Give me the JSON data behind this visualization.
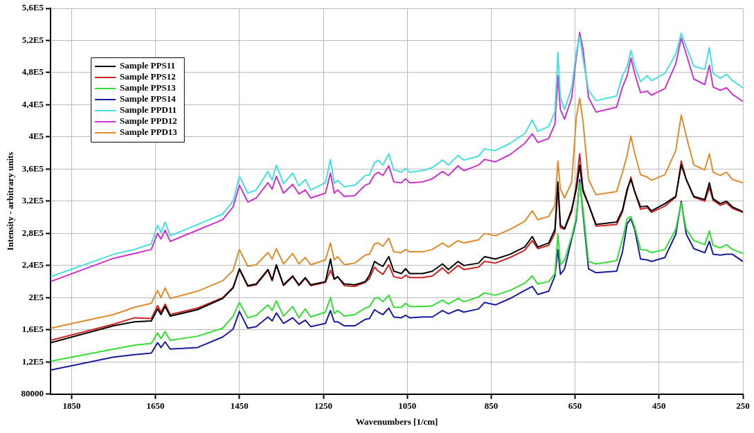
{
  "chart_data": {
    "type": "line",
    "xlabel": "Wavenumbers [1/cm]",
    "ylabel": "Intensity - arbitrary units",
    "x": [
      1900,
      1750,
      1700,
      1660,
      1645,
      1637,
      1627,
      1615,
      1550,
      1490,
      1465,
      1450,
      1430,
      1410,
      1382,
      1372,
      1362,
      1345,
      1323,
      1308,
      1293,
      1280,
      1245,
      1233,
      1224,
      1216,
      1200,
      1175,
      1150,
      1140,
      1128,
      1119,
      1108,
      1094,
      1082,
      1064,
      1054,
      1044,
      1013,
      990,
      966,
      952,
      929,
      915,
      880,
      866,
      840,
      805,
      770,
      752,
      739,
      713,
      698,
      691,
      685,
      675,
      658,
      647,
      639,
      631,
      618,
      600,
      551,
      537,
      526,
      517,
      508,
      494,
      478,
      468,
      436,
      410,
      397,
      385,
      367,
      341,
      330,
      321,
      304,
      289,
      275,
      250
    ],
    "xlim": [
      1900,
      250
    ],
    "xticks": [
      1850,
      1650,
      1450,
      1250,
      1050,
      850,
      650,
      450,
      250
    ],
    "ylim": [
      80000,
      560000
    ],
    "yticks": [
      80000,
      {
        "value": 120000,
        "label": "1,2E5"
      },
      {
        "value": 160000,
        "label": "1,6E5"
      },
      {
        "value": 200000,
        "label": "2E5"
      },
      {
        "value": 240000,
        "label": "2,4E5"
      },
      {
        "value": 280000,
        "label": "2,8E5"
      },
      {
        "value": 320000,
        "label": "3,2E5"
      },
      {
        "value": 360000,
        "label": "3,6E5"
      },
      {
        "value": 400000,
        "label": "4E5"
      },
      {
        "value": 440000,
        "label": "4,4E5"
      },
      {
        "value": 480000,
        "label": "4,8E5"
      },
      {
        "value": 520000,
        "label": "5,2E5"
      },
      {
        "value": 560000,
        "label": "5,6E5"
      }
    ],
    "grid": true,
    "legend": "top left",
    "marker": "none",
    "line_style": "solid",
    "series": [
      {
        "name": "Sample PPS11",
        "color": "#000000",
        "values": [
          144000,
          165000,
          170000,
          171000,
          186000,
          179000,
          189000,
          177000,
          185000,
          199000,
          212000,
          236000,
          215000,
          217000,
          235000,
          222000,
          241000,
          216000,
          227000,
          216000,
          225000,
          216000,
          220000,
          248000,
          223000,
          226000,
          217000,
          216000,
          220000,
          228000,
          245000,
          242000,
          239000,
          251000,
          233000,
          230000,
          236000,
          230000,
          230000,
          233000,
          242000,
          235000,
          245000,
          240000,
          243000,
          251000,
          248000,
          254000,
          263000,
          276000,
          263000,
          268000,
          285000,
          344000,
          290000,
          286000,
          310000,
          335000,
          365000,
          332000,
          316000,
          291000,
          294000,
          309000,
          335000,
          347000,
          332000,
          313000,
          314000,
          308000,
          317000,
          326000,
          365000,
          347000,
          326000,
          322000,
          343000,
          323000,
          317000,
          320000,
          313000,
          307000
        ]
      },
      {
        "name": "Sample PPS12",
        "color": "#cc2222",
        "values": [
          147000,
          167000,
          175000,
          174000,
          190000,
          182000,
          192000,
          179000,
          187000,
          200000,
          213000,
          235000,
          214000,
          216000,
          234000,
          221000,
          240000,
          215000,
          226000,
          215000,
          224000,
          215000,
          219000,
          234000,
          223000,
          226000,
          215000,
          214000,
          219000,
          224000,
          238000,
          233000,
          229000,
          241000,
          226000,
          224000,
          228000,
          225000,
          225000,
          227000,
          237000,
          230000,
          240000,
          235000,
          238000,
          245000,
          243000,
          250000,
          259000,
          271000,
          261000,
          265000,
          280000,
          338000,
          287000,
          285000,
          307000,
          341000,
          379000,
          335000,
          316000,
          289000,
          291000,
          307000,
          332000,
          350000,
          332000,
          310000,
          312000,
          306000,
          314000,
          325000,
          370000,
          347000,
          325000,
          320000,
          337000,
          321000,
          315000,
          318000,
          311000,
          306000
        ]
      },
      {
        "name": "Sample PPS13",
        "color": "#33dd33",
        "values": [
          121000,
          136000,
          141000,
          143000,
          156000,
          149000,
          158000,
          147000,
          152000,
          162000,
          177000,
          194000,
          175000,
          178000,
          191000,
          184000,
          196000,
          177000,
          189000,
          175000,
          186000,
          176000,
          182000,
          200000,
          180000,
          184000,
          177000,
          179000,
          187000,
          189000,
          199000,
          200000,
          195000,
          203000,
          188000,
          188000,
          193000,
          189000,
          189000,
          190000,
          197000,
          192000,
          199000,
          195000,
          201000,
          206000,
          203000,
          209000,
          218000,
          227000,
          217000,
          220000,
          230000,
          279000,
          241000,
          247000,
          276000,
          300000,
          343000,
          310000,
          245000,
          242000,
          246000,
          273000,
          298000,
          301000,
          288000,
          260000,
          259000,
          256000,
          260000,
          285000,
          318000,
          285000,
          271000,
          266000,
          283000,
          265000,
          262000,
          266000,
          260000,
          255000
        ]
      },
      {
        "name": "Sample PPS14",
        "color": "#1a1aa0",
        "values": [
          110000,
          126000,
          129000,
          131000,
          144000,
          138000,
          145000,
          136000,
          138000,
          151000,
          161000,
          183000,
          162000,
          164000,
          176000,
          171000,
          181000,
          168000,
          175000,
          167000,
          172000,
          164000,
          168000,
          184000,
          170000,
          170000,
          165000,
          165000,
          173000,
          174000,
          185000,
          182000,
          179000,
          187000,
          176000,
          175000,
          178000,
          175000,
          176000,
          176000,
          184000,
          180000,
          185000,
          182000,
          186000,
          194000,
          191000,
          199000,
          209000,
          214000,
          204000,
          208000,
          227000,
          260000,
          229000,
          236000,
          273000,
          297000,
          347000,
          304000,
          236000,
          231000,
          233000,
          257000,
          292000,
          298000,
          285000,
          248000,
          247000,
          245000,
          250000,
          279000,
          320000,
          279000,
          261000,
          256000,
          270000,
          254000,
          253000,
          254000,
          254000,
          245000
        ]
      },
      {
        "name": "Sample PPD11",
        "color": "#44e0e0",
        "values": [
          226000,
          254000,
          260000,
          267000,
          290000,
          281000,
          294000,
          277000,
          291000,
          304000,
          320000,
          351000,
          330000,
          334000,
          357000,
          346000,
          365000,
          342000,
          355000,
          339000,
          347000,
          334000,
          343000,
          372000,
          342000,
          346000,
          338000,
          340000,
          352000,
          353000,
          368000,
          371000,
          365000,
          379000,
          359000,
          356000,
          361000,
          356000,
          358000,
          362000,
          371000,
          365000,
          377000,
          371000,
          376000,
          385000,
          383000,
          392000,
          404000,
          421000,
          407000,
          413000,
          431000,
          505000,
          449000,
          434000,
          461000,
          506000,
          525000,
          497000,
          458000,
          445000,
          451000,
          476000,
          487000,
          508000,
          488000,
          469000,
          476000,
          470000,
          479000,
          503000,
          529000,
          512000,
          488000,
          484000,
          511000,
          479000,
          473000,
          478000,
          470000,
          461000
        ]
      },
      {
        "name": "Sample PPD12",
        "color": "#cc33cc",
        "values": [
          220000,
          249000,
          255000,
          260000,
          280000,
          273000,
          284000,
          270000,
          284000,
          297000,
          313000,
          340000,
          319000,
          324000,
          343000,
          335000,
          351000,
          330000,
          341000,
          329000,
          334000,
          324000,
          330000,
          355000,
          330000,
          334000,
          326000,
          327000,
          340000,
          342000,
          353000,
          356000,
          352000,
          364000,
          344000,
          343000,
          348000,
          343000,
          344000,
          348000,
          357000,
          352000,
          364000,
          358000,
          365000,
          372000,
          369000,
          378000,
          392000,
          404000,
          393000,
          398000,
          416000,
          476000,
          434000,
          422000,
          449000,
          500000,
          530000,
          509000,
          449000,
          431000,
          437000,
          462000,
          476000,
          498000,
          479000,
          455000,
          457000,
          452000,
          460000,
          491000,
          523000,
          503000,
          472000,
          465000,
          489000,
          462000,
          458000,
          461000,
          453000,
          444000
        ]
      },
      {
        "name": "Sample PPD13",
        "color": "#e08a2a",
        "values": [
          162000,
          179000,
          188000,
          193000,
          209000,
          200000,
          212000,
          199000,
          208000,
          221000,
          234000,
          260000,
          239000,
          241000,
          256000,
          248000,
          261000,
          242000,
          255000,
          242000,
          250000,
          241000,
          247000,
          268000,
          247000,
          251000,
          241000,
          243000,
          253000,
          254000,
          267000,
          268000,
          264000,
          274000,
          257000,
          256000,
          260000,
          257000,
          257000,
          260000,
          268000,
          263000,
          271000,
          268000,
          272000,
          280000,
          277000,
          285000,
          295000,
          308000,
          297000,
          301000,
          315000,
          370000,
          335000,
          324000,
          344000,
          425000,
          448000,
          419000,
          347000,
          328000,
          332000,
          356000,
          377000,
          401000,
          380000,
          353000,
          350000,
          346000,
          353000,
          383000,
          427000,
          401000,
          365000,
          359000,
          379000,
          356000,
          352000,
          356000,
          347000,
          343000
        ]
      }
    ]
  }
}
